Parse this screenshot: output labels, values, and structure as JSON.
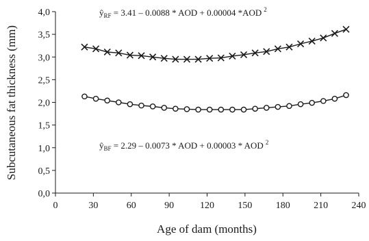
{
  "chart_data": {
    "type": "line",
    "xlabel": "Age of dam (months)",
    "ylabel": "Subcutaneous fat thickness (mm)",
    "xlim": [
      0,
      240
    ],
    "ylim": [
      0.0,
      4.0
    ],
    "xticks": [
      0,
      30,
      60,
      90,
      120,
      150,
      180,
      210,
      240
    ],
    "yticks": [
      0.0,
      0.5,
      1.0,
      1.5,
      2.0,
      2.5,
      3.0,
      3.5,
      4.0
    ],
    "xtick_labels": [
      "0",
      "30",
      "60",
      "90",
      "120",
      "150",
      "180",
      "210",
      "240"
    ],
    "ytick_labels": [
      "0,0",
      "0,5",
      "1,0",
      "1,5",
      "2,0",
      "2,5",
      "3,0",
      "3,5",
      "4,0"
    ],
    "grid": false,
    "series": [
      {
        "marker": "x",
        "color": "#1a1a1a",
        "x": [
          23,
          32,
          41,
          50,
          59,
          68,
          77,
          86,
          95,
          104,
          113,
          122,
          131,
          140,
          149,
          158,
          167,
          176,
          185,
          194,
          203,
          212,
          221,
          230
        ],
        "y": [
          3.22,
          3.18,
          3.11,
          3.09,
          3.04,
          3.03,
          3.0,
          2.97,
          2.95,
          2.95,
          2.95,
          2.97,
          2.98,
          3.02,
          3.05,
          3.09,
          3.12,
          3.18,
          3.22,
          3.29,
          3.35,
          3.42,
          3.52,
          3.61
        ]
      },
      {
        "marker": "o",
        "color": "#1a1a1a",
        "x": [
          23,
          32,
          41,
          50,
          59,
          68,
          77,
          86,
          95,
          104,
          113,
          122,
          131,
          140,
          149,
          158,
          167,
          176,
          185,
          194,
          203,
          212,
          221,
          230
        ],
        "y": [
          2.13,
          2.08,
          2.04,
          2.0,
          1.96,
          1.93,
          1.91,
          1.88,
          1.86,
          1.85,
          1.84,
          1.84,
          1.84,
          1.84,
          1.84,
          1.86,
          1.88,
          1.9,
          1.92,
          1.96,
          1.99,
          2.03,
          2.08,
          2.16
        ]
      }
    ],
    "annotations": [
      {
        "hat": "ŷ",
        "sub": "RF",
        "text": " = 3.41 – 0.0088 * AOD + 0.00004 *AOD",
        "sup": "2"
      },
      {
        "hat": "ŷ",
        "sub": "BF",
        "text": " = 2.29 – 0.0073 * AOD + 0.00003 * AOD",
        "sup": "2"
      }
    ]
  }
}
